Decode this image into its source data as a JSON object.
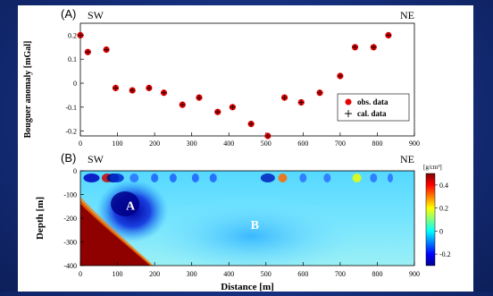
{
  "panel_a": {
    "label": "(A)",
    "left_label": "SW",
    "right_label": "NE",
    "chart_data": {
      "type": "scatter",
      "ylabel": "Bouguer anomaly [mGal]",
      "xlim": [
        0,
        900
      ],
      "ylim": [
        -0.22,
        0.25
      ],
      "x_ticks": [
        0,
        100,
        200,
        300,
        400,
        500,
        600,
        700,
        800,
        900
      ],
      "y_ticks": [
        -0.2,
        -0.1,
        0,
        0.1,
        0.2
      ],
      "y_tick_labels": [
        "-0.2",
        "-0.1",
        "0",
        "0.1",
        "0.2"
      ],
      "legend_position": "bottom-right",
      "series": [
        {
          "name": "obs. data",
          "marker": "filled-circle",
          "color": "#e60000",
          "x": [
            0,
            20,
            70,
            95,
            140,
            185,
            225,
            275,
            320,
            370,
            410,
            460,
            505,
            550,
            595,
            645,
            700,
            740,
            790,
            830
          ],
          "y": [
            0.2,
            0.13,
            0.14,
            -0.02,
            -0.03,
            -0.02,
            -0.04,
            -0.09,
            -0.06,
            -0.12,
            -0.1,
            -0.17,
            -0.22,
            -0.06,
            -0.08,
            -0.04,
            0.03,
            0.15,
            0.15,
            0.2
          ]
        },
        {
          "name": "cal. data",
          "marker": "plus",
          "color": "#000000",
          "x": [
            0,
            20,
            70,
            95,
            140,
            185,
            225,
            275,
            320,
            370,
            410,
            460,
            505,
            550,
            595,
            645,
            700,
            740,
            790,
            830
          ],
          "y": [
            0.2,
            0.13,
            0.14,
            -0.02,
            -0.03,
            -0.02,
            -0.04,
            -0.09,
            -0.06,
            -0.12,
            -0.1,
            -0.17,
            -0.22,
            -0.06,
            -0.08,
            -0.04,
            0.03,
            0.15,
            0.15,
            0.2
          ]
        }
      ]
    }
  },
  "panel_b": {
    "label": "(B)",
    "left_label": "SW",
    "right_label": "NE",
    "chart_data": {
      "type": "heatmap",
      "xlabel": "Distance [m]",
      "ylabel": "Depth [m]",
      "xlim": [
        0,
        900
      ],
      "ylim": [
        -400,
        0
      ],
      "x_ticks": [
        0,
        100,
        200,
        300,
        400,
        500,
        600,
        700,
        800,
        900
      ],
      "y_ticks": [
        0,
        -100,
        -200,
        -300,
        -400
      ],
      "y_tick_labels": [
        "0",
        "-100",
        "-200",
        "-300",
        "-400"
      ],
      "annotations": [
        {
          "text": "A",
          "x": 135,
          "y": -165
        },
        {
          "text": "B",
          "x": 470,
          "y": -245
        }
      ],
      "colorbar": {
        "unit": "[g/cm³]",
        "range": [
          -0.3,
          0.5
        ],
        "ticks": [
          0.4,
          0.2,
          0,
          -0.2
        ],
        "tick_labels": [
          "0.4",
          "0.2",
          "0",
          "-0.2"
        ],
        "colormap": "jet"
      }
    }
  }
}
